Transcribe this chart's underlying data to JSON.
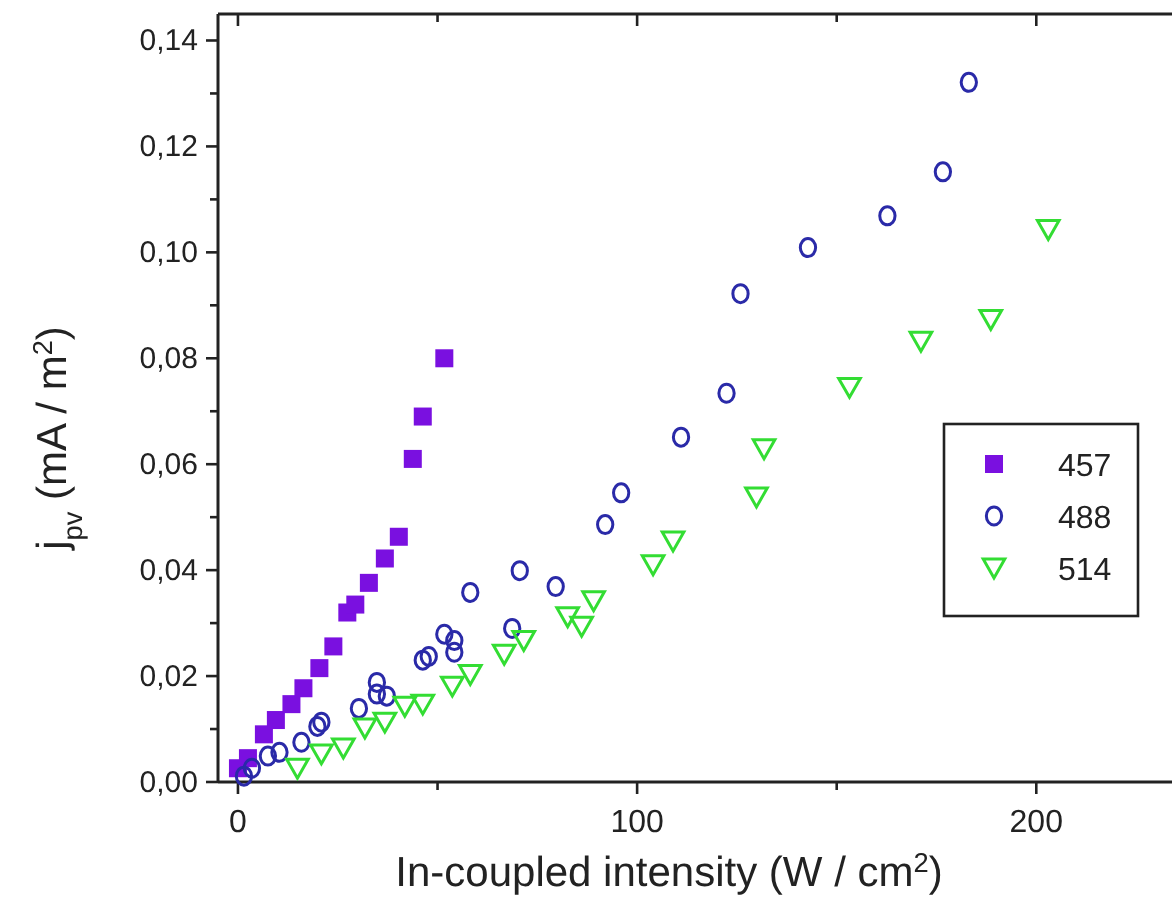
{
  "chart_data": {
    "type": "scatter",
    "xlabel": "In-coupled intensity (W / cm$^{2}$)",
    "ylabel": "j$_{pv}$ (mA / m$^{2}$)",
    "xlim": [
      -5,
      234
    ],
    "ylim": [
      0,
      0.145
    ],
    "xticks": [
      0,
      {
        "value": 50,
        "label": null
      },
      100,
      {
        "value": 150,
        "label": null
      },
      200
    ],
    "yticks": [
      {
        "value": 0,
        "label": "0,00"
      },
      {
        "value": 0.01,
        "label": null
      },
      {
        "value": 0.02,
        "label": "0,02"
      },
      {
        "value": 0.03,
        "label": null
      },
      {
        "value": 0.04,
        "label": "0,04"
      },
      {
        "value": 0.05,
        "label": null
      },
      {
        "value": 0.06,
        "label": "0,06"
      },
      {
        "value": 0.07,
        "label": null
      },
      {
        "value": 0.08,
        "label": "0,08"
      },
      {
        "value": 0.09,
        "label": null
      },
      {
        "value": 0.1,
        "label": "0,10"
      },
      {
        "value": 0.11,
        "label": null
      },
      {
        "value": 0.12,
        "label": "0,12"
      },
      {
        "value": 0.13,
        "label": null
      },
      {
        "value": 0.14,
        "label": "0,14"
      }
    ],
    "grid": false,
    "legend": "right",
    "series": [
      {
        "name": "457",
        "color": "#7a10e0",
        "marker": "square",
        "x": [
          0,
          2.5,
          6.5,
          9.5,
          13.4,
          16.4,
          20.4,
          23.9,
          27.4,
          29.4,
          32.8,
          36.8,
          40.3,
          43.8,
          46.3,
          51.7
        ],
        "values": [
          0.0026,
          0.0045,
          0.009,
          0.0117,
          0.0147,
          0.0177,
          0.0215,
          0.0256,
          0.032,
          0.0335,
          0.0376,
          0.0422,
          0.0463,
          0.061,
          0.069,
          0.08
        ]
      },
      {
        "name": "488",
        "color": "#2a2aa8",
        "marker": "circle",
        "x": [
          1.5,
          3.5,
          7.5,
          10.4,
          15.9,
          19.9,
          20.9,
          30.3,
          34.8,
          34.8,
          37.3,
          46.3,
          47.8,
          51.7,
          54.2,
          54.2,
          58.2,
          68.7,
          70.6,
          79.6,
          92,
          96,
          111,
          122.4,
          125.9,
          142.8,
          162.7,
          176.6,
          183.1
        ],
        "values": [
          0.0011,
          0.0026,
          0.0049,
          0.0056,
          0.0075,
          0.0105,
          0.0113,
          0.0139,
          0.0188,
          0.0166,
          0.0162,
          0.023,
          0.0237,
          0.0279,
          0.0267,
          0.0245,
          0.0358,
          0.029,
          0.0399,
          0.0369,
          0.0486,
          0.0546,
          0.0651,
          0.0734,
          0.0922,
          0.1009,
          0.1069,
          0.1152,
          0.1321
        ]
      },
      {
        "name": "514",
        "color": "#33dd33",
        "marker": "triangle",
        "x": [
          14.9,
          20.9,
          26.4,
          31.8,
          36.8,
          41.8,
          46.3,
          53.7,
          58.2,
          66.7,
          71.6,
          82.6,
          86.1,
          89.1,
          104,
          109,
          129.9,
          131.8,
          153.2,
          171.1,
          188.6,
          203
        ],
        "values": [
          0.0026,
          0.0053,
          0.0064,
          0.0102,
          0.0113,
          0.0143,
          0.0147,
          0.0181,
          0.0203,
          0.0241,
          0.0267,
          0.0312,
          0.0294,
          0.0342,
          0.041,
          0.0455,
          0.0538,
          0.0629,
          0.0745,
          0.0832,
          0.0873,
          0.1043
        ]
      }
    ]
  }
}
